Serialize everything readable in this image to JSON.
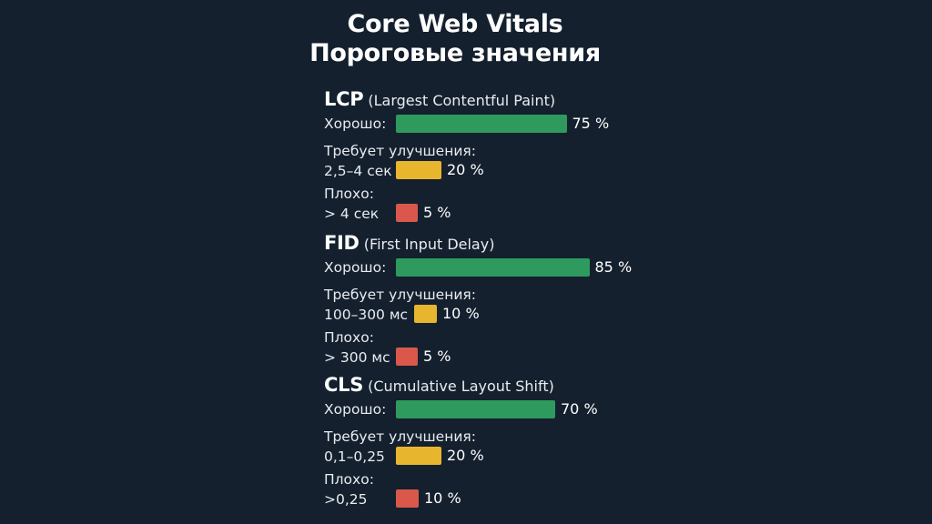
{
  "title": [
    "Core Web Vitals",
    "Пороговые значения"
  ],
  "colors": {
    "background": "#14202e",
    "good": "#2e9a5e",
    "needs_improvement": "#e7b52e",
    "poor": "#d9584b"
  },
  "chart_data": {
    "type": "bar",
    "orientation": "horizontal",
    "title": "Core Web Vitals Пороговые значения",
    "unit": "%",
    "metrics": [
      {
        "abbr": "LCP",
        "name": "(Largest Contentful Paint)",
        "rows": [
          {
            "category": "good",
            "label_line1": "Хорошо:",
            "label_line2": "",
            "value": 75,
            "display": "75 %"
          },
          {
            "category": "needs",
            "label_line1": "Требует улучшения:",
            "label_line2": "2,5–4 сек",
            "value": 20,
            "display": "20 %"
          },
          {
            "category": "poor",
            "label_line1": "Плохо:",
            "label_line2": "> 4 сек",
            "value": 5,
            "display": "5 %"
          }
        ]
      },
      {
        "abbr": "FID",
        "name": "(First Input Delay)",
        "rows": [
          {
            "category": "good",
            "label_line1": "Хорошо:",
            "label_line2": "",
            "value": 85,
            "display": "85 %"
          },
          {
            "category": "needs",
            "label_line1": "Требует улучшения:",
            "label_line2": "100–300 мс",
            "value": 10,
            "display": "10 %"
          },
          {
            "category": "poor",
            "label_line1": "Плохо:",
            "label_line2": "> 300 мс",
            "value": 5,
            "display": "5 %"
          }
        ]
      },
      {
        "abbr": "CLS",
        "name": "(Cumulative Layout Shift)",
        "rows": [
          {
            "category": "good",
            "label_line1": "Хорошо:",
            "label_line2": "",
            "value": 70,
            "display": "70 %"
          },
          {
            "category": "needs",
            "label_line1": "Требует улучшения:",
            "label_line2": "0,1–0,25",
            "value": 20,
            "display": "20 %"
          },
          {
            "category": "poor",
            "label_line1": "Плохо:",
            "label_line2": ">0,25",
            "value": 10,
            "display": "10 %"
          }
        ]
      }
    ]
  }
}
